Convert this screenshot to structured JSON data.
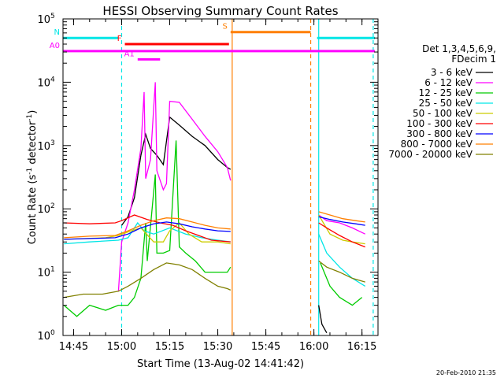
{
  "chart_data": {
    "type": "line",
    "title": "HESSI Observing Summary Count Rates",
    "xlabel": "Start Time (13-Aug-02 14:41:42)",
    "ylabel": "Count Rate (s",
    "ylabel_sup": "-1",
    "ylabel_tail": " detector",
    "ylabel_sup2": "-1",
    "ylabel_close": ")",
    "yscale": "log",
    "ylim": [
      1,
      100000
    ],
    "y_ticks": [
      {
        "label": "10",
        "exp": "0",
        "value": 1
      },
      {
        "label": "10",
        "exp": "1",
        "value": 10
      },
      {
        "label": "10",
        "exp": "2",
        "value": 100
      },
      {
        "label": "10",
        "exp": "3",
        "value": 1000
      },
      {
        "label": "10",
        "exp": "4",
        "value": 10000
      },
      {
        "label": "10",
        "exp": "5",
        "value": 100000
      }
    ],
    "xlim": [
      "14:41:42",
      "16:20:00"
    ],
    "x_ticks": [
      "14:45",
      "15:00",
      "15:15",
      "15:30",
      "15:45",
      "16:00",
      "16:15"
    ],
    "legend_title": [
      "Det 1,3,4,5,6,9,",
      "FDecim 1"
    ],
    "legend_position": "right",
    "flags": [
      {
        "label": "N",
        "color": "#00e6e6",
        "segments": [
          [
            "14:41:42",
            "14:59:00"
          ],
          [
            "16:01:00",
            "16:19:00"
          ]
        ],
        "level": 50000
      },
      {
        "label": "S",
        "color": "#ff7f00",
        "segments": [
          [
            "15:34:00",
            "15:59:00"
          ]
        ],
        "level": 62000
      },
      {
        "label": "F",
        "color": "#ff0000",
        "segments": [
          [
            "15:01:00",
            "15:33:30"
          ]
        ],
        "level": 40000
      },
      {
        "label": "A0",
        "color": "#ff00ff",
        "segments": [
          [
            "14:41:42",
            "16:19:00"
          ]
        ],
        "level": 31000
      },
      {
        "label": "A1",
        "color": "#ff00ff",
        "segments": [
          [
            "15:05:00",
            "15:12:00"
          ]
        ],
        "level": 23000
      }
    ],
    "vlines": [
      {
        "time": "15:00:00",
        "color": "#00e6e6",
        "style": "dashed"
      },
      {
        "time": "15:34:30",
        "color": "#ff7f00",
        "style": "solid"
      },
      {
        "time": "15:59:00",
        "color": "#ff7f00",
        "style": "dashed"
      },
      {
        "time": "16:01:30",
        "color": "#00e6e6",
        "style": "solid"
      },
      {
        "time": "16:18:30",
        "color": "#00e6e6",
        "style": "dashed"
      }
    ],
    "series": [
      {
        "name": "3 - 6 keV",
        "color": "#000000",
        "points": [
          [
            "15:00:00",
            55
          ],
          [
            "15:02:00",
            75
          ],
          [
            "15:04:00",
            150
          ],
          [
            "15:06:00",
            700
          ],
          [
            "15:07:30",
            1500
          ],
          [
            "15:09:00",
            900
          ],
          [
            "15:11:00",
            700
          ],
          [
            "15:13:00",
            500
          ],
          [
            "15:15:00",
            2800
          ],
          [
            "15:18:00",
            2100
          ],
          [
            "15:22:00",
            1400
          ],
          [
            "15:26:00",
            1000
          ],
          [
            "15:30:00",
            600
          ],
          [
            "15:33:00",
            450
          ],
          [
            "15:34:00",
            420
          ]
        ],
        "segments2": [
          [
            "16:01:30",
            3
          ],
          [
            "16:02:30",
            1.5
          ],
          [
            "16:04:00",
            1.1
          ]
        ]
      },
      {
        "name": "6 - 12 keV",
        "color": "#ff00ff",
        "points": [
          [
            "14:59:00",
            5
          ],
          [
            "15:00:00",
            30
          ],
          [
            "15:02:00",
            60
          ],
          [
            "15:04:00",
            200
          ],
          [
            "15:06:00",
            900
          ],
          [
            "15:07:00",
            7000
          ],
          [
            "15:07:30",
            300
          ],
          [
            "15:09:00",
            600
          ],
          [
            "15:10:30",
            10000
          ],
          [
            "15:11:00",
            400
          ],
          [
            "15:13:00",
            200
          ],
          [
            "15:14:00",
            250
          ],
          [
            "15:15:00",
            5000
          ],
          [
            "15:18:00",
            4800
          ],
          [
            "15:22:00",
            2600
          ],
          [
            "15:26:00",
            1400
          ],
          [
            "15:30:00",
            800
          ],
          [
            "15:33:00",
            450
          ],
          [
            "15:34:00",
            280
          ]
        ],
        "segments2": [
          [
            "16:01:30",
            80
          ],
          [
            "16:04:00",
            65
          ],
          [
            "16:08:00",
            60
          ],
          [
            "16:12:00",
            50
          ],
          [
            "16:16:00",
            40
          ]
        ]
      },
      {
        "name": "12 - 25 keV",
        "color": "#00cc00",
        "points": [
          [
            "14:42:00",
            3
          ],
          [
            "14:46:00",
            2
          ],
          [
            "14:50:00",
            3
          ],
          [
            "14:55:00",
            2.5
          ],
          [
            "14:59:00",
            3
          ],
          [
            "15:02:00",
            3
          ],
          [
            "15:04:00",
            4
          ],
          [
            "15:06:00",
            8
          ],
          [
            "15:07:30",
            60
          ],
          [
            "15:08:00",
            15
          ],
          [
            "15:10:30",
            350
          ],
          [
            "15:11:00",
            20
          ],
          [
            "15:13:00",
            20
          ],
          [
            "15:15:00",
            22
          ],
          [
            "15:17:00",
            1200
          ],
          [
            "15:18:00",
            25
          ],
          [
            "15:20:00",
            20
          ],
          [
            "15:23:00",
            15
          ],
          [
            "15:26:00",
            10
          ],
          [
            "15:30:00",
            10
          ],
          [
            "15:33:00",
            10
          ],
          [
            "15:34:00",
            12
          ]
        ],
        "segments2": [
          [
            "16:02:00",
            14
          ],
          [
            "16:05:00",
            6
          ],
          [
            "16:08:00",
            4
          ],
          [
            "16:12:00",
            3
          ],
          [
            "16:15:00",
            4
          ]
        ]
      },
      {
        "name": "25 - 50 keV",
        "color": "#00e6e6",
        "points": [
          [
            "14:42:00",
            28
          ],
          [
            "14:50:00",
            30
          ],
          [
            "14:59:00",
            32
          ],
          [
            "15:02:00",
            35
          ],
          [
            "15:05:00",
            60
          ],
          [
            "15:07:00",
            45
          ],
          [
            "15:10:00",
            40
          ],
          [
            "15:15:00",
            50
          ],
          [
            "15:20:00",
            40
          ],
          [
            "15:25:00",
            35
          ],
          [
            "15:30:00",
            32
          ],
          [
            "15:34:00",
            30
          ]
        ],
        "segments2": [
          [
            "16:01:30",
            40
          ],
          [
            "16:04:00",
            20
          ],
          [
            "16:08:00",
            12
          ],
          [
            "16:12:00",
            8
          ],
          [
            "16:16:00",
            6
          ]
        ]
      },
      {
        "name": "50 - 100 keV",
        "color": "#cccc00",
        "points": [
          [
            "14:42:00",
            33
          ],
          [
            "14:55:00",
            35
          ],
          [
            "14:59:00",
            38
          ],
          [
            "15:03:00",
            45
          ],
          [
            "15:06:00",
            50
          ],
          [
            "15:10:00",
            30
          ],
          [
            "15:13:00",
            30
          ],
          [
            "15:15:00",
            45
          ],
          [
            "15:18:00",
            60
          ],
          [
            "15:21:00",
            40
          ],
          [
            "15:25:00",
            30
          ],
          [
            "15:30:00",
            30
          ],
          [
            "15:34:00",
            28
          ]
        ],
        "segments2": [
          [
            "16:01:30",
            80
          ],
          [
            "16:05:00",
            40
          ],
          [
            "16:09:00",
            32
          ],
          [
            "16:12:00",
            30
          ],
          [
            "16:16:00",
            28
          ]
        ]
      },
      {
        "name": "100 - 300 keV",
        "color": "#ff0000",
        "points": [
          [
            "14:42:00",
            60
          ],
          [
            "14:50:00",
            58
          ],
          [
            "14:58:00",
            60
          ],
          [
            "15:00:00",
            65
          ],
          [
            "15:04:00",
            80
          ],
          [
            "15:08:00",
            68
          ],
          [
            "15:12:00",
            60
          ],
          [
            "15:16:00",
            55
          ],
          [
            "15:20:00",
            45
          ],
          [
            "15:24:00",
            38
          ],
          [
            "15:28:00",
            32
          ],
          [
            "15:34:00",
            30
          ]
        ],
        "segments2": [
          [
            "16:01:30",
            60
          ],
          [
            "16:04:00",
            50
          ],
          [
            "16:08:00",
            38
          ],
          [
            "16:12:00",
            30
          ],
          [
            "16:16:00",
            25
          ]
        ]
      },
      {
        "name": "300 - 800 keV",
        "color": "#0000ff",
        "points": [
          [
            "14:42:00",
            33
          ],
          [
            "14:50:00",
            34
          ],
          [
            "14:58:00",
            35
          ],
          [
            "15:02:00",
            40
          ],
          [
            "15:06:00",
            50
          ],
          [
            "15:10:00",
            58
          ],
          [
            "15:14:00",
            62
          ],
          [
            "15:18:00",
            58
          ],
          [
            "15:22:00",
            52
          ],
          [
            "15:26:00",
            48
          ],
          [
            "15:30:00",
            45
          ],
          [
            "15:34:00",
            44
          ]
        ],
        "segments2": [
          [
            "16:01:30",
            75
          ],
          [
            "16:05:00",
            68
          ],
          [
            "16:09:00",
            62
          ],
          [
            "16:13:00",
            58
          ],
          [
            "16:16:00",
            55
          ]
        ]
      },
      {
        "name": "800 - 7000 keV",
        "color": "#ff7f00",
        "points": [
          [
            "14:42:00",
            35
          ],
          [
            "14:50:00",
            37
          ],
          [
            "14:58:00",
            38
          ],
          [
            "15:02:00",
            45
          ],
          [
            "15:06:00",
            55
          ],
          [
            "15:10:00",
            65
          ],
          [
            "15:14:00",
            72
          ],
          [
            "15:18:00",
            70
          ],
          [
            "15:22:00",
            62
          ],
          [
            "15:26:00",
            55
          ],
          [
            "15:30:00",
            50
          ],
          [
            "15:34:00",
            48
          ]
        ],
        "segments2": [
          [
            "16:01:30",
            90
          ],
          [
            "16:05:00",
            80
          ],
          [
            "16:09:00",
            70
          ],
          [
            "16:13:00",
            65
          ],
          [
            "16:16:00",
            62
          ]
        ]
      },
      {
        "name": "7000 - 20000 keV",
        "color": "#808000",
        "points": [
          [
            "14:42:00",
            4
          ],
          [
            "14:48:00",
            4.5
          ],
          [
            "14:54:00",
            4.5
          ],
          [
            "14:59:00",
            5
          ],
          [
            "15:02:00",
            6
          ],
          [
            "15:06:00",
            8
          ],
          [
            "15:10:00",
            11
          ],
          [
            "15:14:00",
            14
          ],
          [
            "15:18:00",
            13
          ],
          [
            "15:22:00",
            11
          ],
          [
            "15:26:00",
            8
          ],
          [
            "15:30:00",
            6
          ],
          [
            "15:33:00",
            5.5
          ],
          [
            "15:34:00",
            5.2
          ]
        ],
        "segments2": [
          [
            "16:01:30",
            15
          ],
          [
            "16:04:00",
            12
          ],
          [
            "16:08:00",
            10
          ],
          [
            "16:12:00",
            8
          ],
          [
            "16:16:00",
            7
          ]
        ]
      }
    ],
    "footer": "20-Feb-2010 21:35"
  }
}
